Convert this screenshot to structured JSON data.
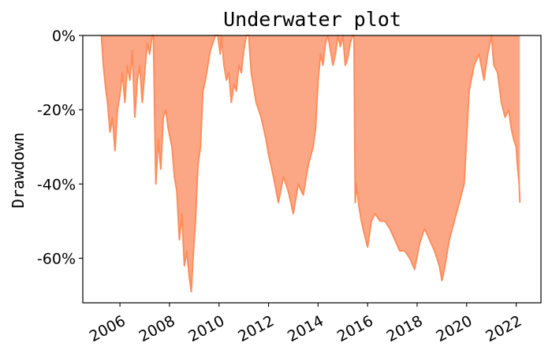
{
  "chart_data": {
    "type": "area",
    "title": "Underwater plot",
    "xlabel": "",
    "ylabel": "Drawdown",
    "xlim": [
      2004.5,
      2023.0
    ],
    "ylim": [
      -72,
      0
    ],
    "x_ticks": [
      2006,
      2008,
      2010,
      2012,
      2014,
      2016,
      2018,
      2020,
      2022
    ],
    "x_tick_labels": [
      "2006",
      "2008",
      "2010",
      "2012",
      "2014",
      "2016",
      "2018",
      "2020",
      "2022"
    ],
    "y_ticks": [
      0,
      -20,
      -40,
      -60
    ],
    "y_tick_labels": [
      "0%",
      "-20%",
      "-40%",
      "-60%"
    ],
    "grid": false,
    "legend": "none",
    "colors": {
      "fill": "#fa8a5e",
      "fill_opacity": 0.75,
      "line": "#ff8d5c"
    },
    "series": [
      {
        "x": [
          2005.25,
          2005.33,
          2005.42,
          2005.5,
          2005.6,
          2005.7,
          2005.8,
          2005.9,
          2006.0,
          2006.1,
          2006.2,
          2006.3,
          2006.4,
          2006.5,
          2006.6,
          2006.7,
          2006.8,
          2006.9,
          2007.0,
          2007.1,
          2007.2,
          2007.3,
          2007.35,
          2007.45,
          2007.55,
          2007.65,
          2007.75,
          2007.85,
          2007.95,
          2008.1,
          2008.2,
          2008.3,
          2008.4,
          2008.5,
          2008.6,
          2008.7,
          2008.8,
          2008.88,
          2008.95,
          2009.05,
          2009.15,
          2009.25,
          2009.35,
          2009.45,
          2009.55,
          2009.65,
          2009.75,
          2009.85,
          2009.95,
          2010.05,
          2010.1,
          2010.2,
          2010.3,
          2010.4,
          2010.5,
          2010.6,
          2010.7,
          2010.8,
          2010.9,
          2011.0,
          2011.1,
          2011.2,
          2011.3,
          2011.5,
          2011.7,
          2011.9,
          2012.0,
          2012.2,
          2012.4,
          2012.6,
          2012.8,
          2013.0,
          2013.2,
          2013.4,
          2013.6,
          2013.8,
          2013.9,
          2014.0,
          2014.1,
          2014.2,
          2014.3,
          2014.4,
          2014.5,
          2014.6,
          2014.7,
          2014.8,
          2014.9,
          2015.0,
          2015.1,
          2015.2,
          2015.3,
          2015.4,
          2015.45,
          2015.5,
          2015.55,
          2015.65,
          2015.75,
          2015.85,
          2016.0,
          2016.15,
          2016.3,
          2016.5,
          2016.7,
          2016.9,
          2017.1,
          2017.3,
          2017.5,
          2017.7,
          2017.9,
          2018.1,
          2018.3,
          2018.5,
          2018.7,
          2018.9,
          2019.0,
          2019.1,
          2019.3,
          2019.5,
          2019.7,
          2019.9,
          2020.1,
          2020.3,
          2020.5,
          2020.7,
          2020.85,
          2021.0,
          2021.1,
          2021.25,
          2021.4,
          2021.55,
          2021.7,
          2021.8,
          2021.9,
          2022.0,
          2022.05,
          2022.12,
          2022.15
        ],
        "y": [
          0,
          -8,
          -14,
          -18,
          -26,
          -22,
          -31,
          -20,
          -16,
          -10,
          -18,
          -8,
          -12,
          -4,
          -22,
          -12,
          -8,
          -18,
          -10,
          -2,
          -5,
          0,
          0,
          -40,
          -28,
          -36,
          -22,
          -20,
          -25,
          -30,
          -38,
          -42,
          -55,
          -48,
          -62,
          -58,
          -65,
          -69,
          -60,
          -50,
          -35,
          -30,
          -15,
          -12,
          -8,
          -4,
          -2,
          0,
          0,
          -5,
          0,
          -8,
          -12,
          -10,
          -18,
          -13,
          -15,
          -8,
          -10,
          -4,
          0,
          0,
          -10,
          -18,
          -22,
          -28,
          -32,
          -38,
          -45,
          -38,
          -42,
          -48,
          -40,
          -43,
          -35,
          -30,
          -25,
          -12,
          -5,
          -8,
          -2,
          0,
          -4,
          -8,
          -5,
          0,
          -3,
          0,
          -8,
          -6,
          -2,
          0,
          0,
          -45,
          -40,
          -46,
          -50,
          -53,
          -57,
          -50,
          -48,
          -50,
          -50,
          -52,
          -55,
          -58,
          -58,
          -60,
          -63,
          -56,
          -52,
          -55,
          -58,
          -62,
          -66,
          -63,
          -55,
          -50,
          -45,
          -40,
          -15,
          -8,
          -5,
          -12,
          -5,
          0,
          -8,
          -10,
          -18,
          -22,
          -20,
          -25,
          -28,
          -30,
          -35,
          -40,
          -45
        ]
      }
    ]
  }
}
